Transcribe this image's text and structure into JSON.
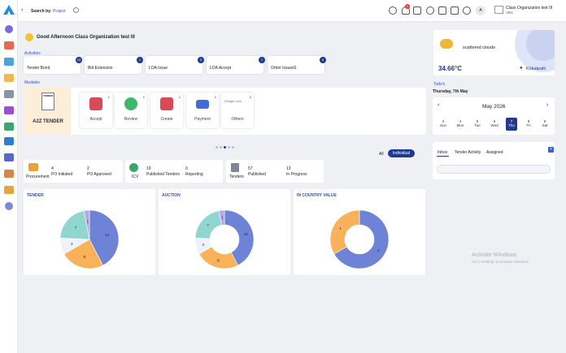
{
  "header": {
    "search_label": "Search by:",
    "search_value": "Project",
    "user_name": "Class Organization test III",
    "user_org": "AEC",
    "avatar_letter": "A",
    "notif_count": "0"
  },
  "greeting": "Good Afternoon Class Organization test III",
  "activities": {
    "title": "Activities",
    "items": [
      {
        "label": "Tender Bond",
        "count": "23"
      },
      {
        "label": "Bid Extension",
        "count": "1"
      },
      {
        "label": "LOA Issue",
        "count": "5"
      },
      {
        "label": "LOA Accept",
        "count": "1"
      },
      {
        "label": "Order Issued1",
        "count": "5"
      }
    ]
  },
  "modules": {
    "title": "Modules",
    "tender_logo": "A2Z TENDER",
    "tender_tag": "TENDER",
    "items": [
      {
        "label": "Accept",
        "count": "1"
      },
      {
        "label": "Review",
        "count": "1"
      },
      {
        "label": "Create",
        "count": "1"
      },
      {
        "label": "Payment",
        "count": "1"
      },
      {
        "label": "Others",
        "count": "2",
        "alt": "Widget Icon"
      }
    ]
  },
  "filters": {
    "all": "All",
    "individual": "Individual"
  },
  "stats": [
    {
      "title": "Procurement",
      "items": [
        {
          "value": "4",
          "label": "PO Initiated"
        },
        {
          "value": "2",
          "label": "PO Approved"
        }
      ]
    },
    {
      "title": "ICV",
      "items": [
        {
          "value": "19",
          "label": "Published Tenders"
        },
        {
          "value": "0",
          "label": "Reporting"
        }
      ]
    },
    {
      "title": "Tenders",
      "items": [
        {
          "value": "57",
          "label": "Published"
        },
        {
          "value": "13",
          "label": "In Progress"
        }
      ]
    }
  ],
  "weather": {
    "desc": "scattered clouds",
    "temp": "34.66°C",
    "location": "Kūkatpalli"
  },
  "todo": {
    "title": "Todo's",
    "date": "Thursday, 7th May",
    "month": "May 2026",
    "days": [
      {
        "n": "2",
        "d": "Sun"
      },
      {
        "n": "4",
        "d": "Mon"
      },
      {
        "n": "5",
        "d": "Tue"
      },
      {
        "n": "6",
        "d": "Wed"
      },
      {
        "n": "7",
        "d": "Thu"
      },
      {
        "n": "8",
        "d": "Fri"
      },
      {
        "n": "9",
        "d": "Sat"
      }
    ],
    "tabs": [
      "Inbox",
      "Tender Activity",
      "Assigned"
    ]
  },
  "charts": {
    "tender_title": "TENDER",
    "auction_title": "AUCTION",
    "icv_title": "IN COUNTRY VALUE"
  },
  "chart_data": [
    {
      "type": "pie",
      "title": "TENDER",
      "values": [
        14,
        8,
        3,
        7,
        1
      ],
      "colors": [
        "#6e82d6",
        "#f9b25a",
        "#eef3fb",
        "#8fd6d0",
        "#b9a6e8"
      ]
    },
    {
      "type": "pie",
      "title": "AUCTION",
      "values": [
        14,
        8,
        3,
        7,
        1
      ],
      "donut": true,
      "colors": [
        "#6e82d6",
        "#f9b25a",
        "#eef3fb",
        "#8fd6d0",
        "#b9a6e8"
      ]
    },
    {
      "type": "pie",
      "title": "IN COUNTRY VALUE",
      "values": [
        2,
        1
      ],
      "donut": true,
      "colors": [
        "#6e82d6",
        "#f9b25a"
      ]
    }
  ],
  "watermark": {
    "line1": "Activate Windows",
    "line2": "Go to Settings to activate Windows."
  }
}
